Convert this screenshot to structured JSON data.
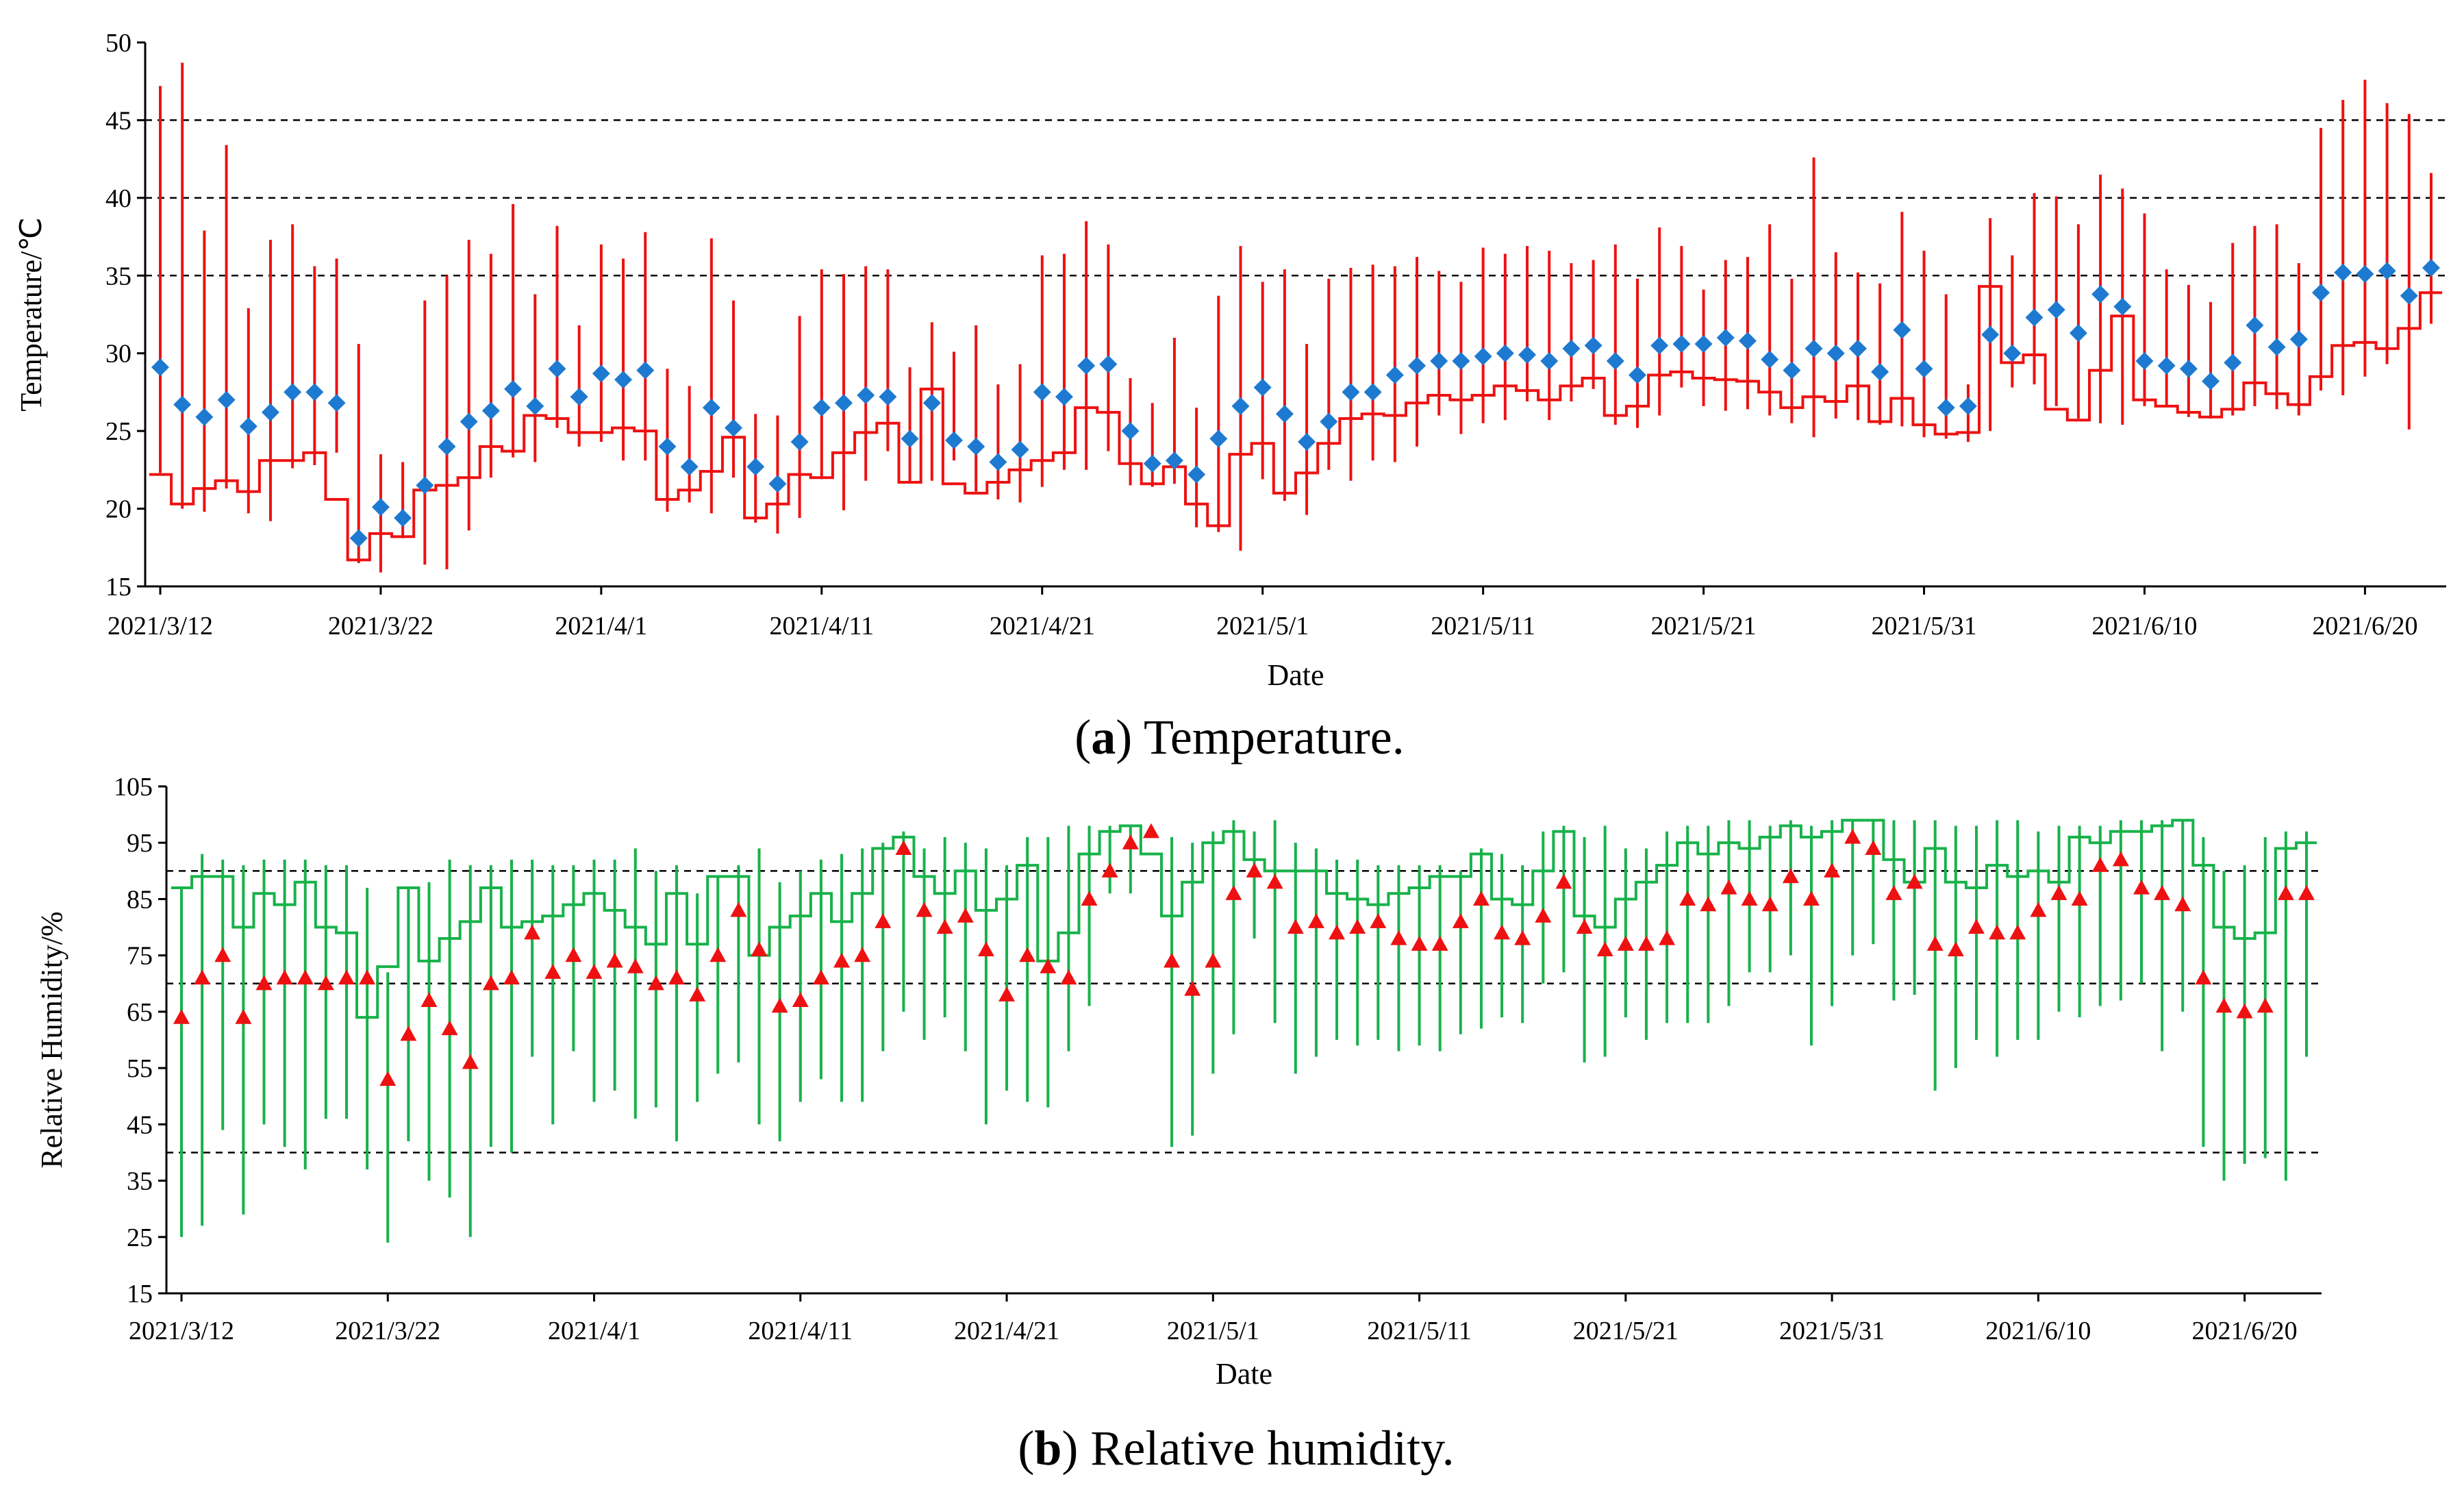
{
  "chart_data": [
    {
      "type": "high-low-close",
      "caption_letter": "a",
      "caption_text": "Temperature.",
      "xlabel": "Date",
      "ylabel": "Temperature/℃",
      "ylim": [
        15,
        50
      ],
      "yticks": [
        15,
        20,
        25,
        30,
        35,
        40,
        45,
        50
      ],
      "reference_lines": [
        35,
        40,
        45
      ],
      "x_tick_labels": [
        "2021/3/12",
        "2021/3/22",
        "2021/4/1",
        "2021/4/11",
        "2021/4/21",
        "2021/5/1",
        "2021/5/11",
        "2021/5/21",
        "2021/5/31",
        "2021/6/10",
        "2021/6/20"
      ],
      "line_color": "#ee1111",
      "marker_color": "#1e7ad0",
      "marker": "diamond",
      "series": {
        "mean": [
          29.1,
          26.7,
          25.9,
          27.0,
          25.3,
          26.2,
          27.5,
          27.5,
          26.8,
          18.1,
          20.1,
          19.4,
          21.5,
          24.0,
          25.6,
          26.3,
          27.7,
          26.6,
          29.0,
          27.2,
          28.7,
          28.3,
          28.9,
          24.0,
          22.7,
          26.5,
          25.2,
          22.7,
          21.6,
          24.3,
          26.5,
          26.8,
          27.3,
          27.2,
          24.5,
          26.8,
          24.4,
          24.0,
          23.0,
          23.8,
          27.5,
          27.2,
          29.2,
          29.3,
          25.0,
          22.9,
          23.1,
          22.2,
          24.5,
          26.6,
          27.8,
          26.1,
          24.3,
          25.6,
          27.5,
          27.5,
          28.6,
          29.2,
          29.5,
          29.5,
          29.8,
          30.0,
          29.9,
          29.5,
          30.3,
          30.5,
          29.5,
          28.6,
          30.5,
          30.6,
          30.6,
          31.0,
          30.8,
          29.6,
          28.9,
          30.3,
          30.0,
          30.3,
          28.8,
          31.5,
          29.0,
          26.5,
          26.6,
          31.2,
          30.0,
          32.3,
          32.8,
          31.3,
          33.8,
          33.0,
          29.5,
          29.2,
          29.0,
          28.2,
          29.4,
          31.8,
          30.4,
          30.9,
          33.9,
          35.2,
          35.1,
          35.3,
          33.7,
          35.5
        ],
        "max": [
          47.2,
          48.7,
          37.9,
          43.4,
          32.9,
          37.3,
          38.3,
          35.6,
          36.1,
          30.6,
          23.5,
          23.0,
          33.4,
          35.0,
          37.3,
          36.4,
          39.6,
          33.8,
          38.2,
          31.8,
          37.0,
          36.1,
          37.8,
          29.0,
          27.9,
          37.4,
          33.4,
          26.1,
          26.0,
          32.4,
          35.4,
          35.1,
          35.6,
          35.4,
          29.1,
          32.0,
          30.1,
          31.8,
          28.0,
          29.3,
          36.3,
          36.4,
          38.5,
          37.0,
          28.4,
          26.8,
          31.0,
          26.5,
          33.7,
          36.9,
          34.6,
          35.4,
          30.6,
          34.8,
          35.5,
          35.7,
          35.6,
          36.2,
          35.3,
          34.6,
          36.8,
          36.4,
          36.9,
          36.6,
          35.8,
          36.0,
          37.0,
          34.8,
          38.1,
          36.9,
          34.1,
          36.0,
          36.2,
          38.3,
          34.8,
          42.6,
          36.5,
          35.2,
          34.5,
          39.1,
          36.6,
          33.8,
          28.0,
          38.7,
          36.3,
          40.3,
          40.1,
          38.3,
          41.5,
          40.6,
          39.0,
          35.4,
          34.4,
          33.3,
          37.1,
          38.2,
          38.3,
          35.8,
          44.5,
          46.3,
          47.6,
          46.1,
          45.4,
          41.6
        ],
        "min": [
          22.3,
          20.0,
          19.8,
          21.3,
          19.7,
          19.2,
          22.6,
          22.8,
          23.6,
          16.5,
          15.9,
          18.1,
          16.4,
          16.1,
          18.6,
          22.0,
          23.3,
          23.0,
          25.2,
          24.0,
          24.3,
          23.1,
          23.1,
          19.8,
          20.4,
          19.7,
          22.0,
          19.1,
          18.4,
          19.4,
          21.9,
          19.9,
          21.8,
          23.7,
          21.7,
          21.8,
          23.1,
          21.1,
          20.6,
          20.4,
          21.4,
          22.5,
          22.5,
          23.7,
          21.5,
          21.4,
          21.6,
          18.8,
          18.5,
          17.3,
          21.9,
          20.5,
          19.6,
          22.5,
          21.8,
          23.1,
          23.0,
          24.0,
          26.0,
          24.8,
          25.5,
          25.7,
          26.9,
          25.7,
          26.9,
          27.7,
          25.4,
          25.2,
          26.0,
          27.8,
          26.6,
          26.3,
          26.4,
          26.0,
          25.5,
          24.6,
          25.8,
          25.7,
          25.4,
          25.3,
          24.6,
          24.5,
          24.3,
          25.0,
          27.8,
          28.0,
          26.6,
          25.8,
          25.5,
          25.4,
          26.6,
          26.6,
          25.9,
          25.8,
          26.0,
          26.6,
          26.4,
          26.0,
          27.6,
          27.3,
          28.5,
          29.3,
          25.1,
          31.9
        ],
        "step": [
          22.2,
          20.3,
          21.3,
          21.8,
          21.1,
          23.1,
          23.1,
          23.6,
          20.6,
          16.7,
          18.4,
          18.2,
          21.2,
          21.5,
          22.0,
          24.0,
          23.7,
          26.0,
          25.8,
          24.9,
          24.9,
          25.2,
          25.0,
          20.6,
          21.2,
          22.4,
          24.6,
          19.4,
          20.3,
          22.2,
          22.0,
          23.6,
          24.9,
          25.5,
          21.7,
          27.7,
          21.6,
          21.0,
          21.7,
          22.5,
          23.1,
          23.6,
          26.5,
          26.2,
          22.9,
          21.6,
          22.7,
          20.3,
          18.9,
          23.5,
          24.2,
          21.0,
          22.3,
          24.2,
          25.8,
          26.1,
          26.0,
          26.8,
          27.3,
          27.0,
          27.3,
          27.9,
          27.6,
          27.0,
          27.9,
          28.4,
          26.0,
          26.6,
          28.6,
          28.8,
          28.4,
          28.3,
          28.2,
          27.5,
          26.5,
          27.2,
          26.9,
          27.9,
          25.6,
          27.1,
          25.4,
          24.8,
          24.9,
          34.3,
          29.4,
          29.9,
          26.4,
          25.7,
          28.9,
          32.4,
          27.0,
          26.6,
          26.2,
          25.9,
          26.4,
          28.1,
          27.4,
          26.7,
          28.5,
          30.5,
          30.7,
          30.3,
          31.6,
          33.9
        ]
      }
    },
    {
      "type": "high-low-close",
      "caption_letter": "b",
      "caption_text": "Relative humidity.",
      "xlabel": "Date",
      "ylabel": "Relative Humidity/%",
      "ylim": [
        15,
        105
      ],
      "yticks": [
        15,
        25,
        35,
        45,
        55,
        65,
        75,
        85,
        95,
        105
      ],
      "reference_lines": [
        40,
        70,
        90
      ],
      "x_tick_labels": [
        "2021/3/12",
        "2021/3/22",
        "2021/4/1",
        "2021/4/11",
        "2021/4/21",
        "2021/5/1",
        "2021/5/11",
        "2021/5/21",
        "2021/5/31",
        "2021/6/10",
        "2021/6/20"
      ],
      "line_color": "#17b24a",
      "marker_color": "#ee1111",
      "marker": "triangle",
      "series": {
        "mean": [
          64,
          71,
          75,
          64,
          70,
          71,
          71,
          70,
          71,
          71,
          53,
          61,
          67,
          62,
          56,
          70,
          71,
          79,
          72,
          75,
          72,
          74,
          73,
          70,
          71,
          68,
          75,
          83,
          76,
          66,
          67,
          71,
          74,
          75,
          81,
          94,
          83,
          80,
          82,
          76,
          68,
          75,
          73,
          71,
          85,
          90,
          95,
          97,
          74,
          69,
          74,
          86,
          90,
          88,
          80,
          81,
          79,
          80,
          81,
          78,
          77,
          77,
          81,
          85,
          79,
          78,
          82,
          88,
          80,
          76,
          77,
          77,
          78,
          85,
          84,
          87,
          85,
          84,
          89,
          85,
          90,
          96,
          94,
          86,
          88,
          77,
          76,
          80,
          79,
          79,
          83,
          86,
          85,
          91,
          92,
          87,
          86,
          84,
          71,
          66,
          65,
          66,
          86,
          86
        ],
        "max": [
          87,
          93,
          92,
          91,
          92,
          92,
          92,
          91,
          91,
          87,
          72,
          87,
          88,
          92,
          91,
          91,
          92,
          92,
          91,
          91,
          92,
          92,
          94,
          90,
          91,
          86,
          89,
          91,
          94,
          88,
          90,
          92,
          93,
          94,
          95,
          97,
          94,
          96,
          95,
          94,
          91,
          96,
          96,
          98,
          98,
          98,
          98,
          97,
          96,
          95,
          97,
          99,
          97,
          99,
          95,
          94,
          92,
          92,
          91,
          91,
          91,
          91,
          90,
          94,
          93,
          91,
          97,
          98,
          96,
          98,
          94,
          94,
          97,
          98,
          98,
          99,
          99,
          98,
          99,
          98,
          99,
          99,
          99,
          99,
          99,
          99,
          98,
          98,
          99,
          99,
          97,
          98,
          98,
          98,
          99,
          99,
          99,
          99,
          96,
          90,
          91,
          96,
          97,
          97
        ],
        "min": [
          25,
          27,
          44,
          29,
          45,
          41,
          37,
          46,
          46,
          37,
          24,
          42,
          35,
          32,
          25,
          41,
          40,
          57,
          45,
          58,
          49,
          51,
          46,
          48,
          42,
          49,
          54,
          56,
          45,
          42,
          49,
          53,
          49,
          49,
          58,
          65,
          60,
          64,
          58,
          45,
          51,
          49,
          48,
          58,
          66,
          86,
          86,
          96,
          41,
          43,
          54,
          61,
          78,
          63,
          54,
          57,
          60,
          59,
          60,
          58,
          59,
          58,
          61,
          62,
          64,
          63,
          70,
          72,
          56,
          57,
          64,
          60,
          63,
          63,
          63,
          66,
          72,
          72,
          75,
          59,
          66,
          75,
          77,
          67,
          68,
          51,
          55,
          60,
          57,
          60,
          60,
          65,
          64,
          66,
          67,
          70,
          58,
          65,
          41,
          35,
          38,
          39,
          35,
          57
        ],
        "step": [
          87,
          89,
          89,
          80,
          86,
          84,
          88,
          80,
          79,
          64,
          73,
          87,
          74,
          78,
          81,
          87,
          80,
          81,
          82,
          84,
          86,
          83,
          80,
          77,
          86,
          77,
          89,
          89,
          75,
          80,
          82,
          86,
          81,
          86,
          94,
          96,
          89,
          86,
          90,
          83,
          85,
          91,
          74,
          79,
          93,
          97,
          98,
          93,
          82,
          88,
          95,
          97,
          92,
          90,
          90,
          90,
          86,
          85,
          84,
          86,
          87,
          89,
          89,
          93,
          85,
          84,
          90,
          97,
          82,
          80,
          85,
          88,
          91,
          95,
          93,
          95,
          94,
          96,
          98,
          96,
          97,
          99,
          99,
          92,
          88,
          94,
          88,
          87,
          91,
          89,
          90,
          88,
          96,
          95,
          97,
          97,
          98,
          99,
          91,
          80,
          78,
          79,
          94,
          95
        ]
      }
    }
  ]
}
